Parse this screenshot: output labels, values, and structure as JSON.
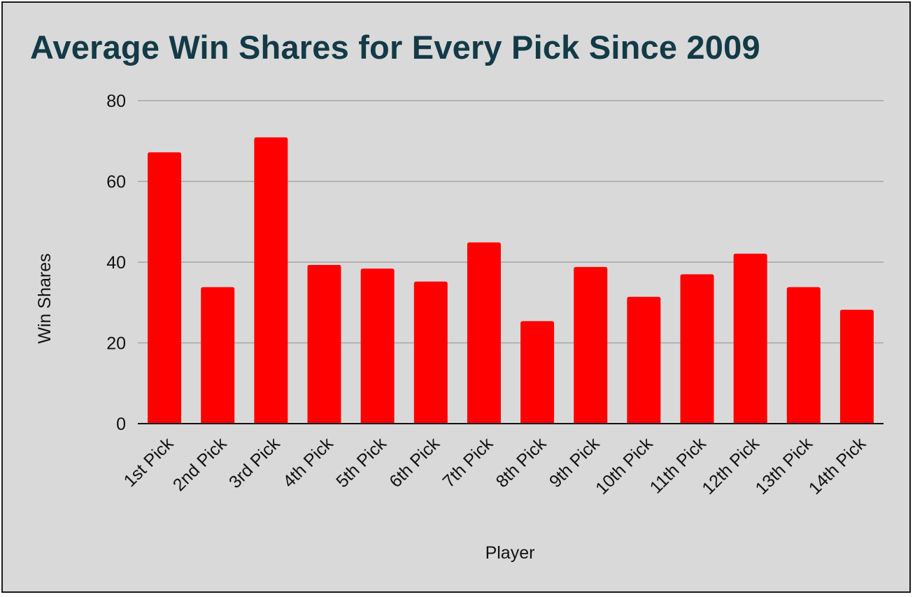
{
  "chart_data": {
    "type": "bar",
    "title": "Average Win Shares for Every Pick Since 2009",
    "xlabel": "Player",
    "ylabel": "Win Shares",
    "categories": [
      "1st Pick",
      "2nd Pick",
      "3rd Pick",
      "4th Pick",
      "5th Pick",
      "6th Pick",
      "7th Pick",
      "8th Pick",
      "9th Pick",
      "10th Pick",
      "11th Pick",
      "12th Pick",
      "13th Pick",
      "14th Pick"
    ],
    "values": [
      67.2,
      33.8,
      70.9,
      39.3,
      38.4,
      35.2,
      44.9,
      25.4,
      38.8,
      31.4,
      37.0,
      42.1,
      33.8,
      28.2
    ],
    "ylim": [
      0,
      80
    ],
    "yticks": [
      0,
      20,
      40,
      60,
      80
    ],
    "grid": true,
    "legend": "none",
    "colors": {
      "bar": "#ff0000",
      "background": "#d9d9d9",
      "title": "#133a47",
      "gridline": "#a6a6a6",
      "baseline": "#111111"
    }
  }
}
